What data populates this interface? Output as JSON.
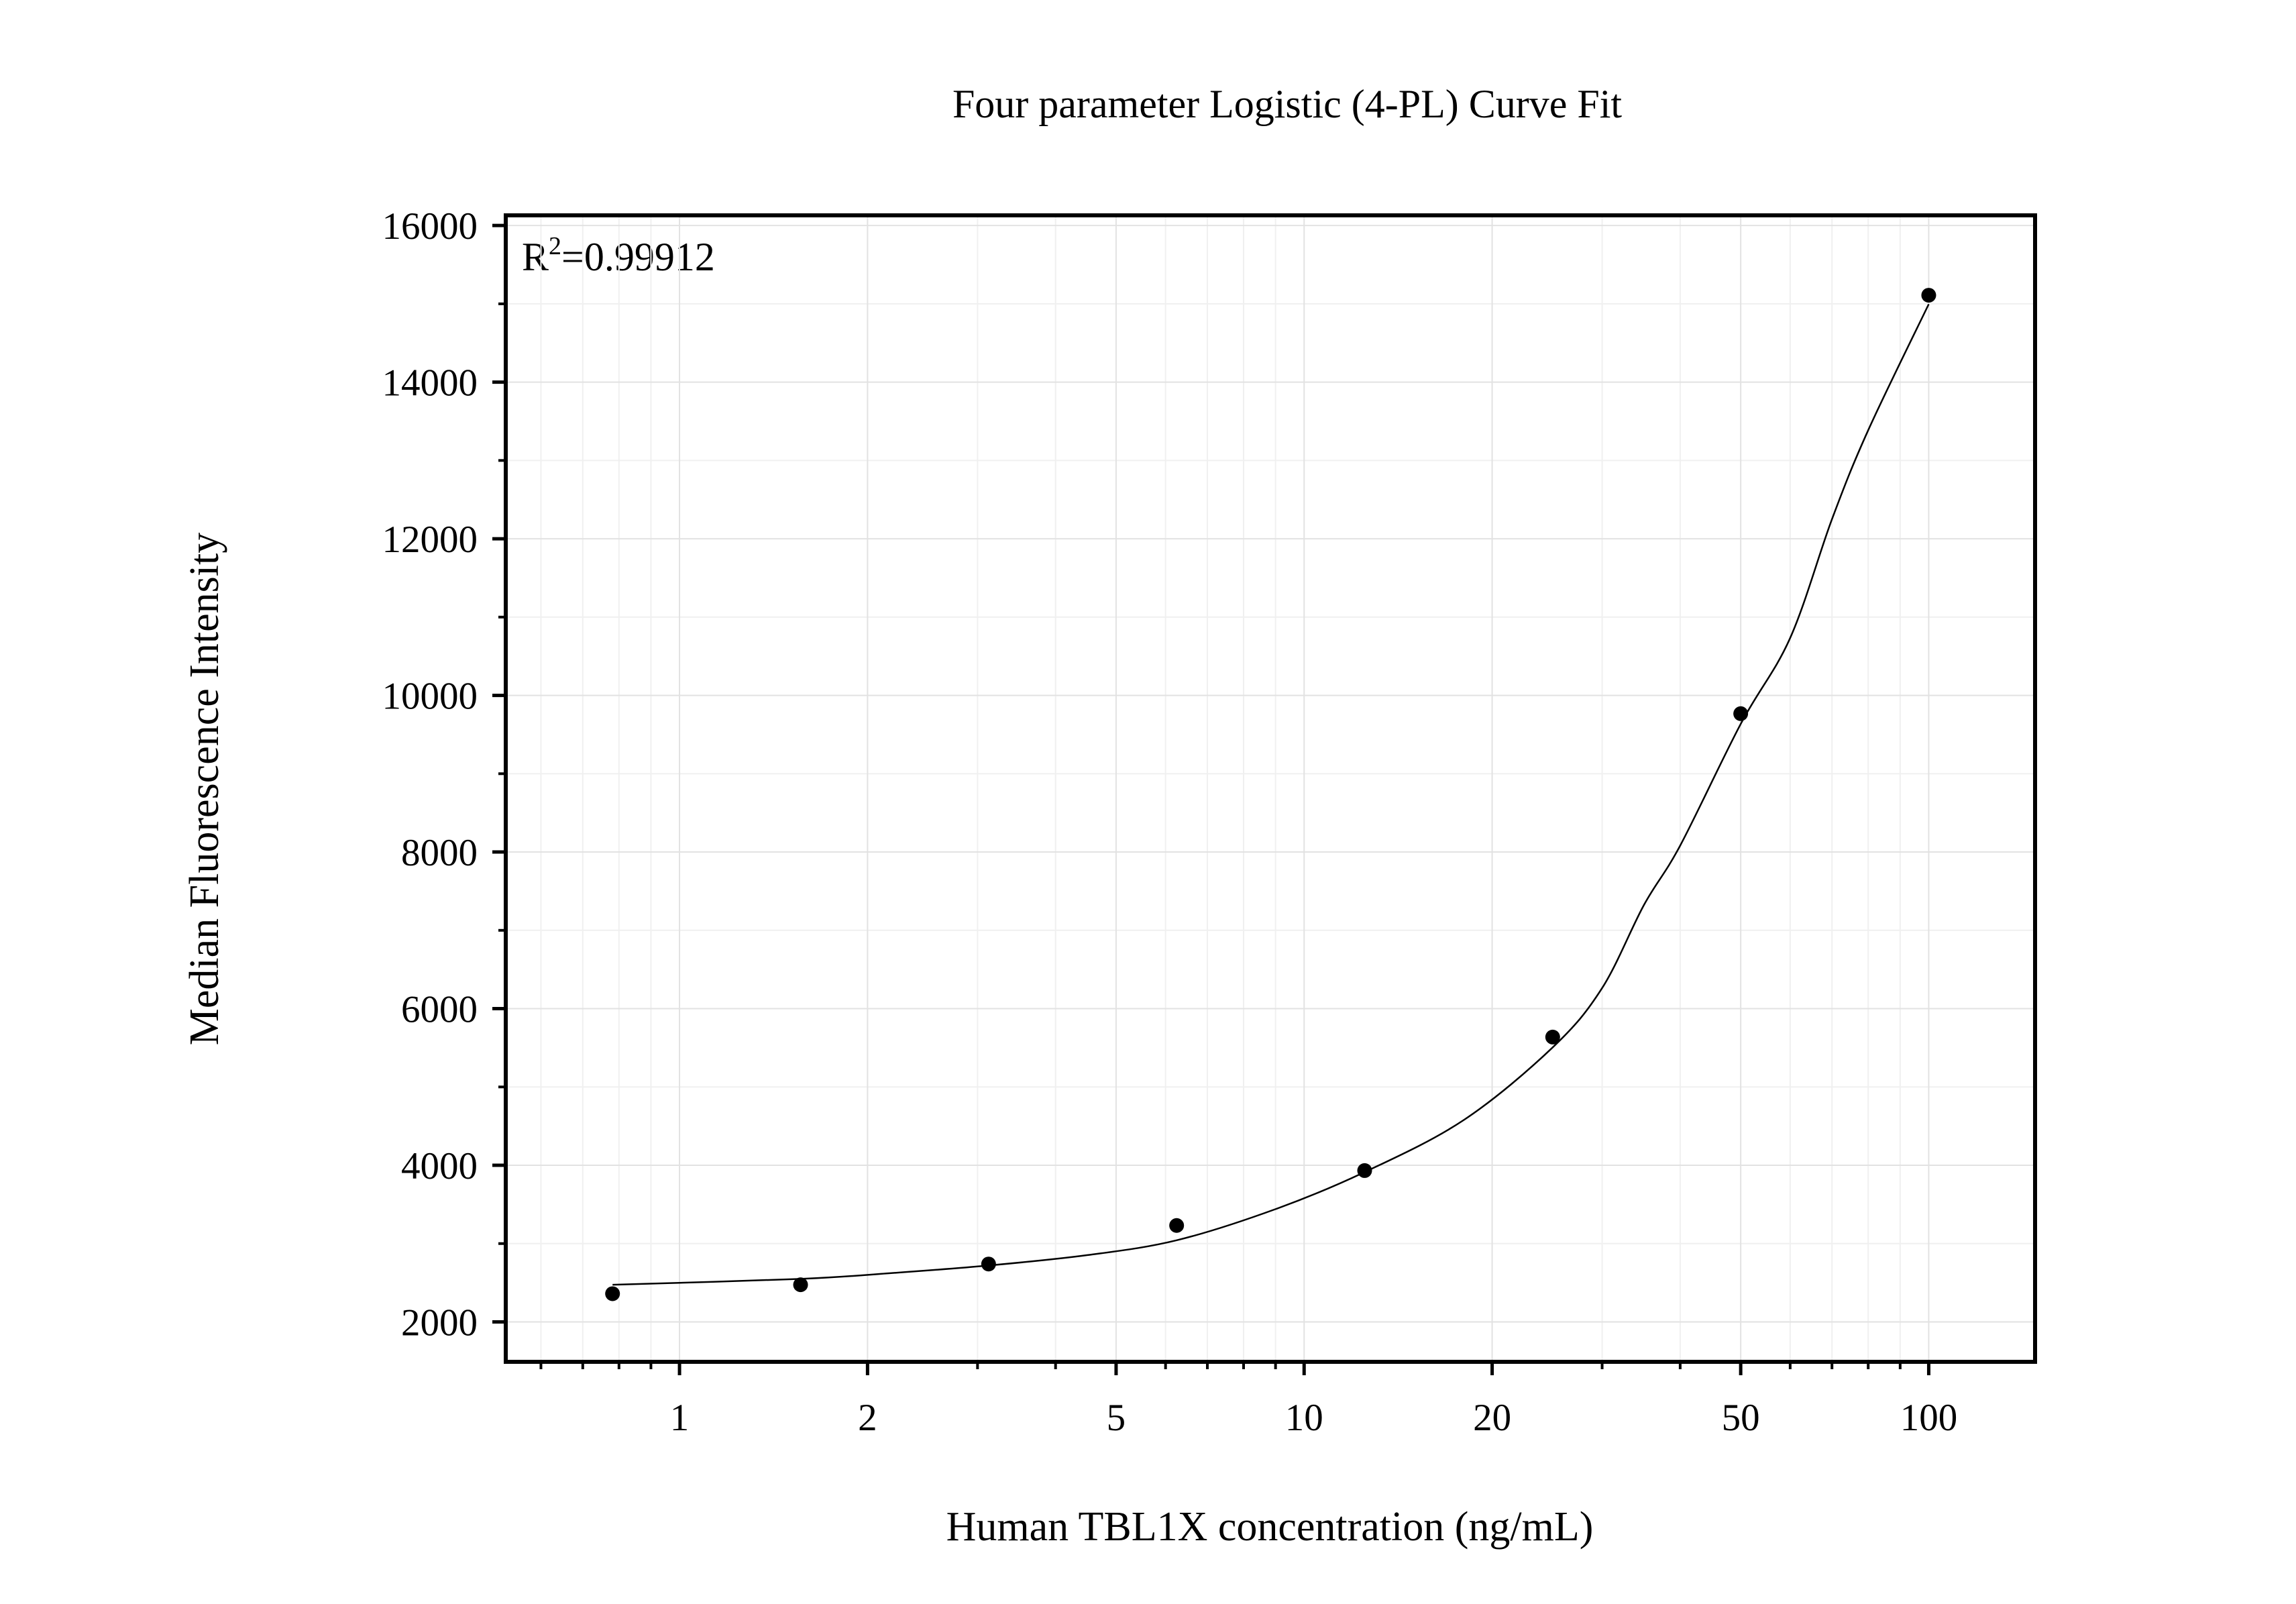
{
  "chart_data": {
    "type": "scatter",
    "title": "Four parameter Logistic (4-PL) Curve Fit",
    "x_label": "Human TBL1X concentration (ng/mL)",
    "y_label": "Median Fluorescence Intensity",
    "annotation": {
      "base": "R",
      "sup": "2",
      "rest": "=0.99912"
    },
    "x_scale": "log",
    "grid": true,
    "series": [
      {
        "color": "#000000",
        "x": [
          0.78125,
          1.5625,
          3.125,
          6.25,
          12.5,
          25,
          50,
          100
        ],
        "values": [
          2360,
          2474,
          2739,
          3231,
          3932,
          5637,
          9767,
          15110
        ]
      }
    ],
    "fit": {
      "color": "#000000",
      "x": [
        0.78125,
        1.5625,
        2.2,
        3.125,
        4.5,
        6.25,
        9,
        12.5,
        18,
        25,
        30,
        35,
        40,
        50,
        60,
        70,
        80,
        100
      ],
      "values": [
        2474,
        2549,
        2625,
        2720,
        2853,
        3042,
        3440,
        3913,
        4576,
        5505,
        6263,
        7324,
        8082,
        9635,
        10733,
        12250,
        13386,
        14996
      ]
    },
    "xlim": [
      0.527,
      148
    ],
    "xticks": [
      1,
      2,
      5,
      10,
      20,
      50,
      100
    ],
    "xminor": [
      0.6,
      0.7,
      0.8,
      0.9,
      3,
      4,
      6,
      7,
      8,
      9,
      30,
      40,
      60,
      70,
      80,
      90
    ],
    "ylim": [
      1490,
      16130
    ],
    "yticks": [
      2000,
      4000,
      6000,
      8000,
      10000,
      12000,
      14000,
      16000
    ],
    "yminor": [
      3000,
      5000,
      7000,
      9000,
      11000,
      13000,
      15000
    ]
  }
}
